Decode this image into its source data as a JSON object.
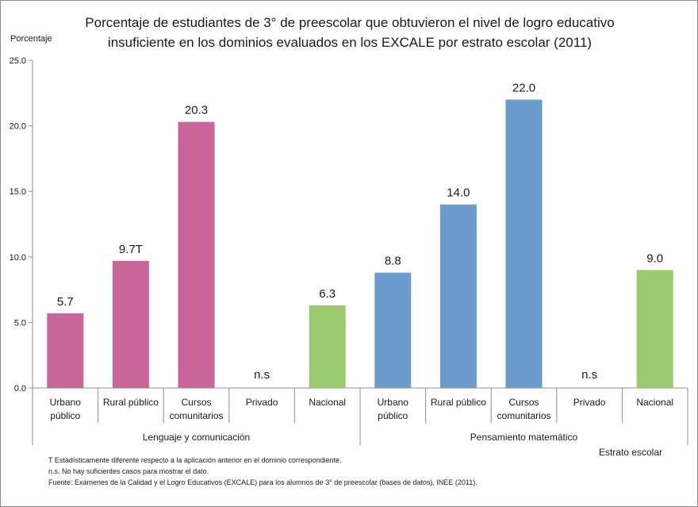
{
  "title": {
    "line1": "Porcentaje de estudiantes de 3° de preescolar  que obtuvieron el  nivel de logro educativo",
    "line2": "insuficiente en los dominios evaluados en los EXCALE por estrato escolar (2011)"
  },
  "colors": {
    "lenguaje": "#c8659a",
    "matematico": "#6a9bcc",
    "nacional": "#9bc96e"
  },
  "chart_data": {
    "type": "bar",
    "title": "Porcentaje de estudiantes de 3° de preescolar  que obtuvieron el  nivel de logro educativo insuficiente en los dominios evaluados en los EXCALE por estrato escolar (2011)",
    "ylabel": "Porcentaje",
    "xlabel": "Estrato escolar",
    "ylim": [
      0,
      25
    ],
    "yticks": [
      "0.0",
      "5.0",
      "10.0",
      "15.0",
      "20.0",
      "25.0"
    ],
    "ytick_values": [
      0,
      5,
      10,
      15,
      20,
      25
    ],
    "grid": false,
    "legend": "none",
    "groups": [
      "Lenguaje y comunicación",
      "Pensamiento matemático"
    ],
    "categories": [
      {
        "label": [
          "Urbano",
          "público"
        ],
        "group": 0,
        "value": 5.7,
        "display": "5.7",
        "color": "lenguaje"
      },
      {
        "label": [
          "Rural público"
        ],
        "group": 0,
        "value": 9.7,
        "display": "9.7T",
        "color": "lenguaje"
      },
      {
        "label": [
          "Cursos",
          "comunitarios"
        ],
        "group": 0,
        "value": 20.3,
        "display": "20.3",
        "color": "lenguaje"
      },
      {
        "label": [
          "Privado"
        ],
        "group": 0,
        "value": null,
        "display": "n.s",
        "color": "lenguaje"
      },
      {
        "label": [
          "Nacional"
        ],
        "group": 0,
        "value": 6.3,
        "display": "6.3",
        "color": "nacional"
      },
      {
        "label": [
          "Urbano",
          "público"
        ],
        "group": 1,
        "value": 8.8,
        "display": "8.8",
        "color": "matematico"
      },
      {
        "label": [
          "Rural público"
        ],
        "group": 1,
        "value": 14.0,
        "display": "14.0",
        "color": "matematico"
      },
      {
        "label": [
          "Cursos",
          "comunitarios"
        ],
        "group": 1,
        "value": 22.0,
        "display": "22.0",
        "color": "matematico"
      },
      {
        "label": [
          "Privado"
        ],
        "group": 1,
        "value": null,
        "display": "n.s",
        "color": "matematico"
      },
      {
        "label": [
          "Nacional"
        ],
        "group": 1,
        "value": 9.0,
        "display": "9.0",
        "color": "nacional"
      }
    ]
  },
  "footnotes": {
    "line1": "T Estadísticamente diferente respecto a la aplicación anterior en el dominio correspondiente.",
    "line2": "n.s. No hay suficientes casos para mostrar el dato.",
    "line3": "Fuente: Exámenes de la Calidad y el Logro Educativos (EXCALE) para los alumnos de 3° de preescolar (bases de datos), INEE (2011)."
  }
}
